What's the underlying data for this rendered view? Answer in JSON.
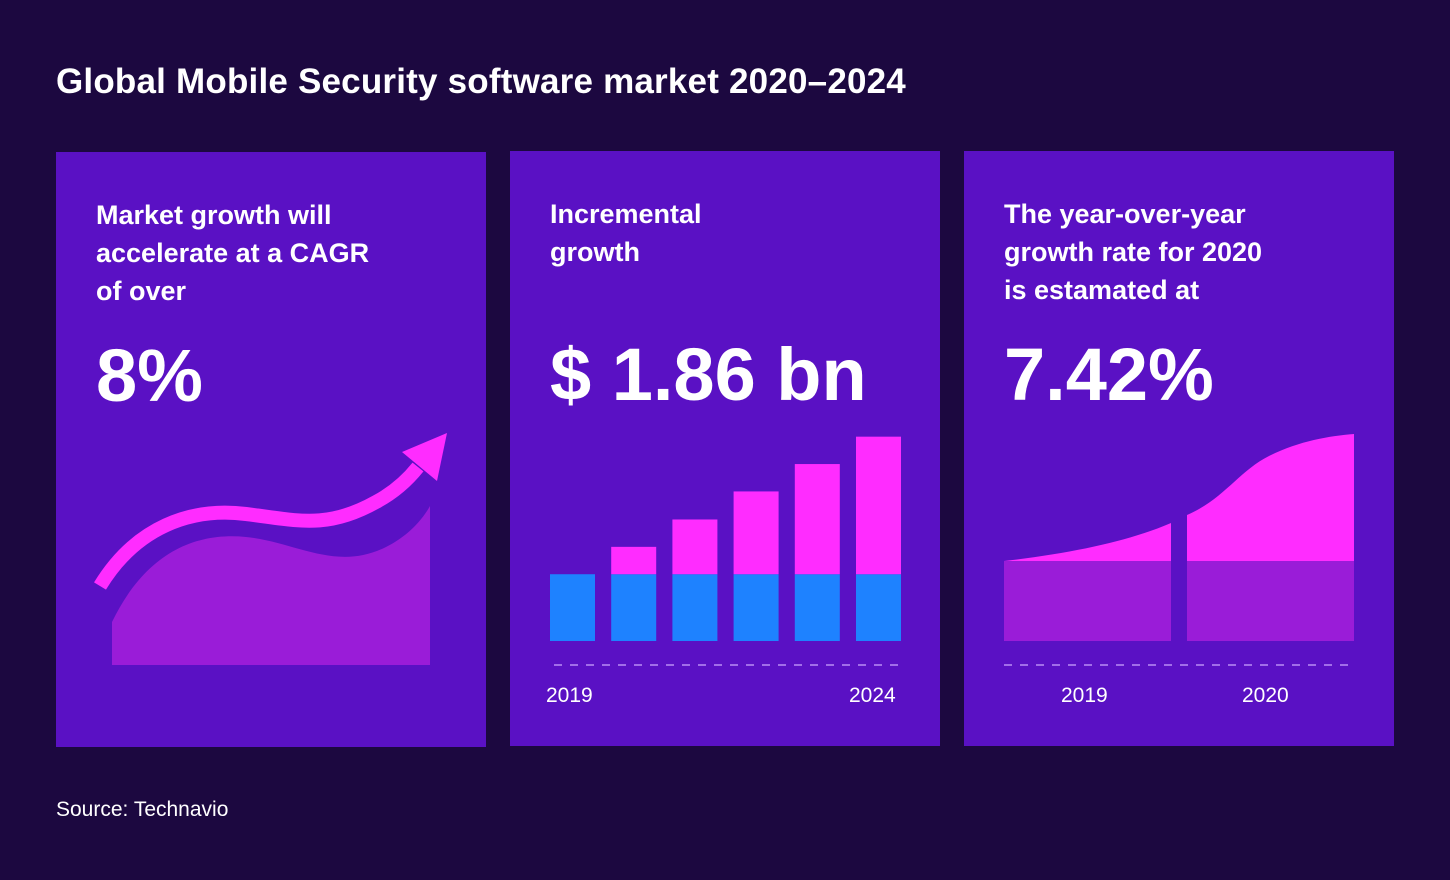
{
  "title": "Global Mobile Security software market 2020–2024",
  "source": "Source: Technavio",
  "colors": {
    "background": "#1c0840",
    "card": "#5a11c4",
    "magenta": "#ff2cff",
    "blue": "#1e82ff",
    "violet_fill": "#9a1cd8"
  },
  "cards": [
    {
      "label": "Market growth will\naccelerate at a CAGR\nof over",
      "value": "8%"
    },
    {
      "label": "Incremental\ngrowth",
      "value": "$ 1.86 bn"
    },
    {
      "label": "The year-over-year\ngrowth rate for 2020\nis estamated at",
      "value": "7.42%"
    }
  ],
  "chart_data": [
    {
      "type": "bar",
      "stacked": true,
      "categories": [
        "2019",
        "",
        "",
        "",
        "",
        "2024"
      ],
      "series": [
        {
          "values": [
            1,
            1,
            1,
            1,
            1,
            1
          ]
        },
        {
          "values": [
            0,
            0.41,
            0.82,
            1.24,
            1.65,
            2.06
          ]
        }
      ],
      "tick_labels": [
        "2019",
        "2024"
      ],
      "ylim": [
        0,
        3.1
      ]
    },
    {
      "type": "area",
      "categories": [
        "2019",
        "2020"
      ],
      "tick_labels": [
        "2019",
        "2020"
      ]
    }
  ]
}
